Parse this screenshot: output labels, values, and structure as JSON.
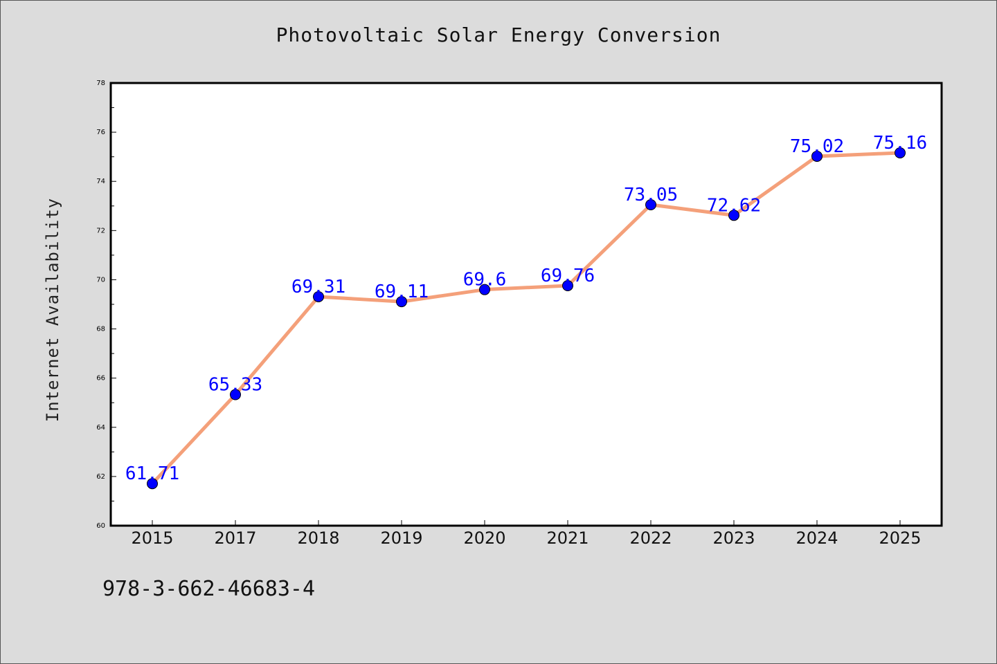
{
  "chart_data": {
    "type": "line",
    "title": "Photovoltaic Solar Energy Conversion",
    "xlabel": "",
    "ylabel": "Internet Availability",
    "categories": [
      "2015",
      "2017",
      "2018",
      "2019",
      "2020",
      "2021",
      "2022",
      "2023",
      "2024",
      "2025"
    ],
    "series": [
      {
        "values": [
          61.71,
          65.33,
          69.31,
          69.11,
          69.6,
          69.76,
          73.05,
          72.62,
          75.02,
          75.16
        ],
        "data_labels": [
          "61.71",
          "65.33",
          "69.31",
          "69.11",
          "69.6",
          "69.76",
          "73.05",
          "72.62",
          "75.02",
          "75.16"
        ],
        "line_color": "#f4a07a",
        "marker_color": "#0000ff",
        "label_color": "#0000ff"
      }
    ],
    "ylim": [
      60,
      78
    ],
    "yticks": [
      "60",
      "62",
      "64",
      "66",
      "68",
      "70",
      "72",
      "74",
      "76",
      "78"
    ],
    "grid": false,
    "legend": "none"
  },
  "footnote": "978-3-662-46683-4",
  "colors": {
    "background": "#dcdcdc",
    "plot_background": "#ffffff"
  }
}
